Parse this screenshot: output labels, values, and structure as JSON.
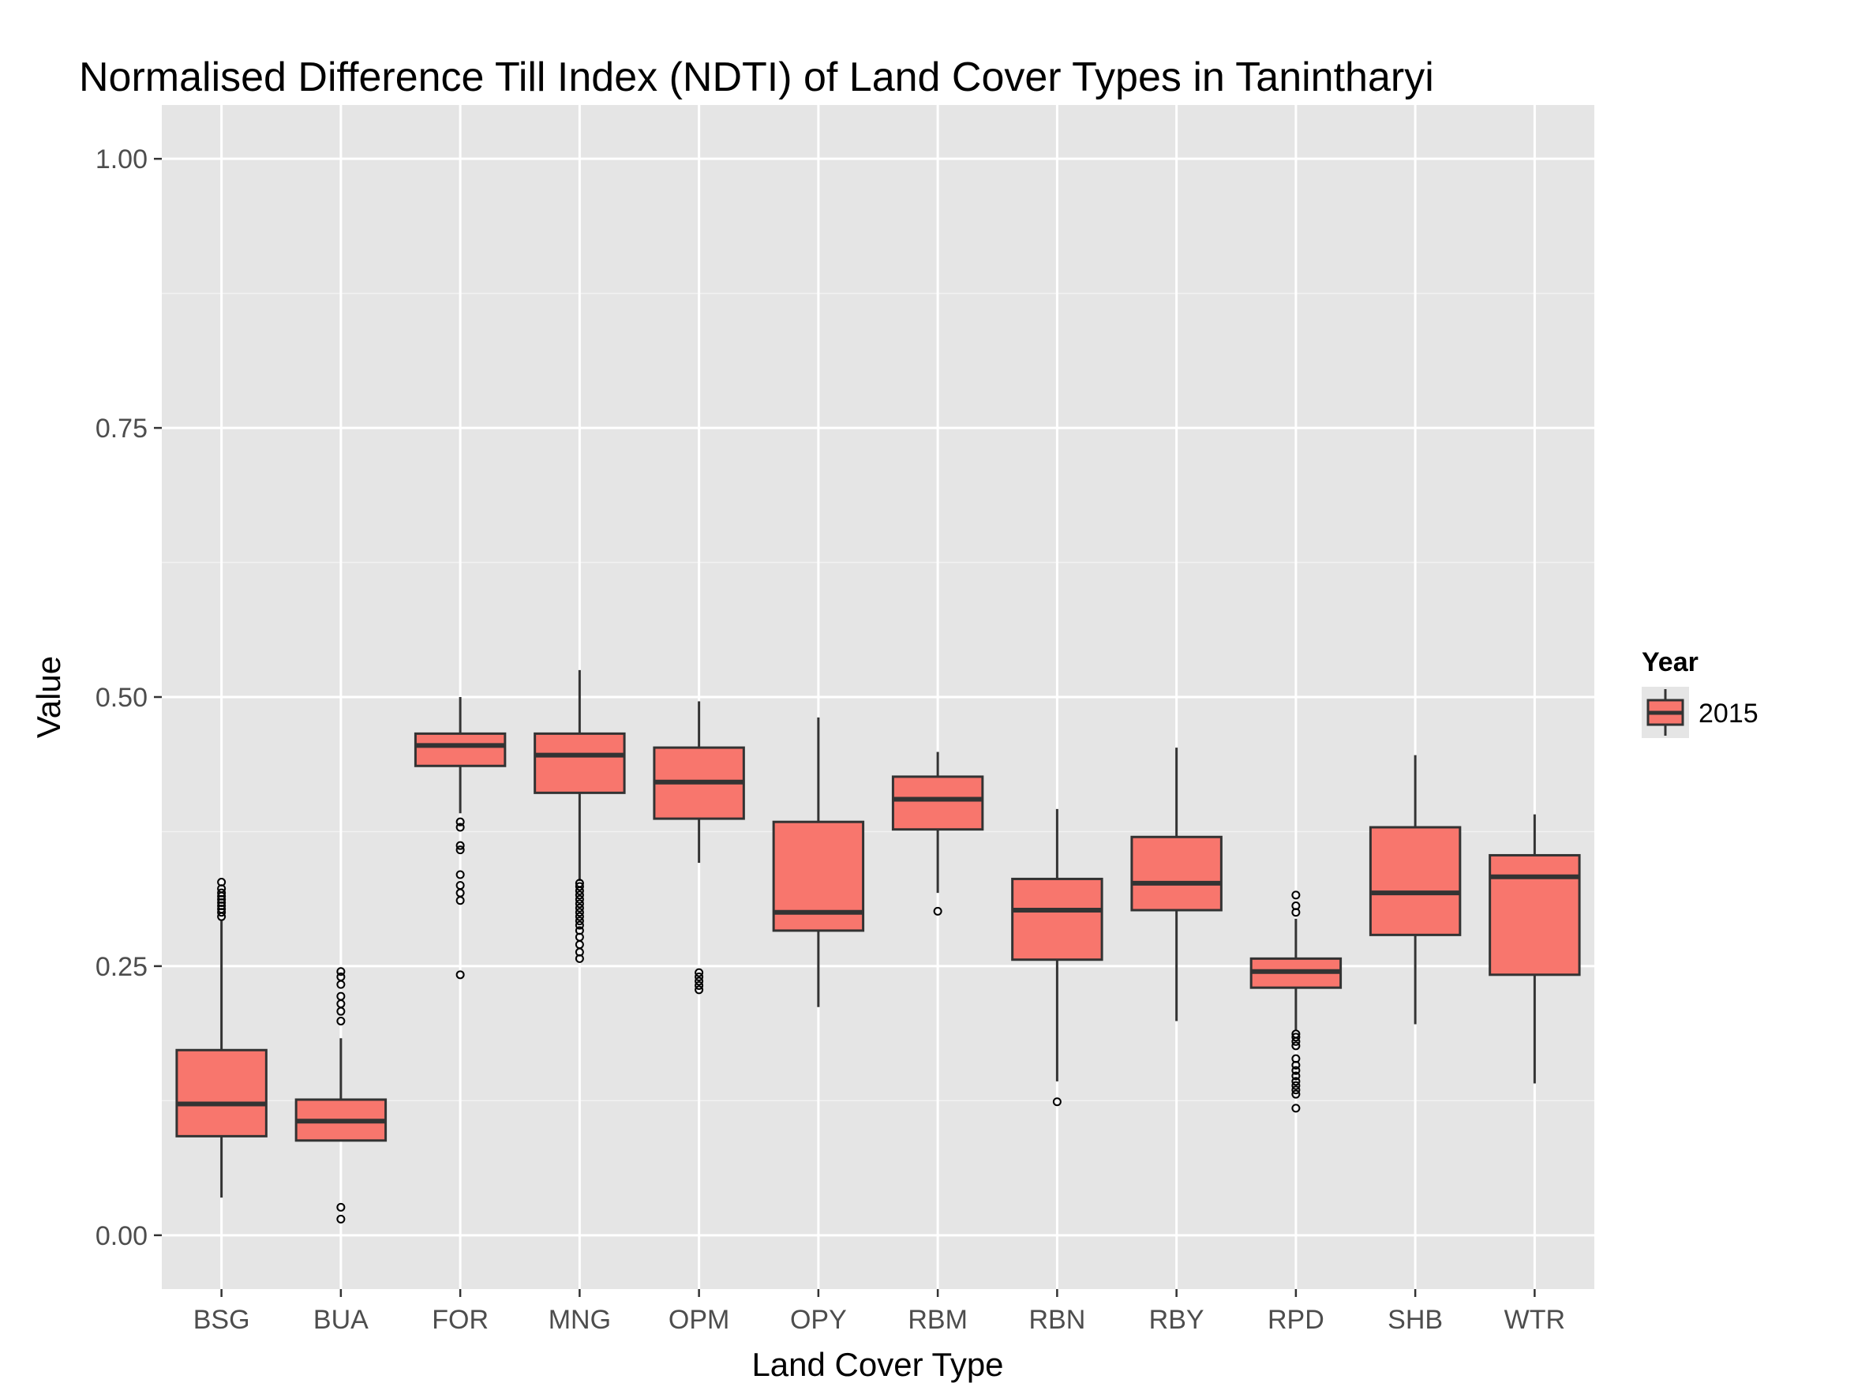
{
  "chart_data": {
    "type": "box",
    "title": "Normalised Difference Till Index (NDTI) of Land Cover Types in Tanintharyi",
    "xlabel": "Land Cover Type",
    "ylabel": "Value",
    "ylim": [
      -0.05,
      1.05
    ],
    "yticks": [
      0.0,
      0.25,
      0.5,
      0.75,
      1.0
    ],
    "ytick_labels": [
      "0.00",
      "0.25",
      "0.50",
      "0.75",
      "1.00"
    ],
    "grid": true,
    "legend": {
      "title": "Year",
      "placement": "right",
      "entries": [
        "2015"
      ]
    },
    "colors": {
      "fill": "#F8766D",
      "panel": "#E5E5E5",
      "grid": "#FFFFFF",
      "stroke": "#333333"
    },
    "categories": [
      "BSG",
      "BUA",
      "FOR",
      "MNG",
      "OPM",
      "OPY",
      "RBM",
      "RBN",
      "RBY",
      "RPD",
      "SHB",
      "WTR"
    ],
    "series": [
      {
        "name": "2015",
        "boxes": [
          {
            "category": "BSG",
            "whisker_low": 0.035,
            "q1": 0.092,
            "median": 0.122,
            "q3": 0.172,
            "whisker_high": 0.292,
            "outliers": [
              0.296,
              0.3,
              0.303,
              0.306,
              0.309,
              0.312,
              0.315,
              0.318,
              0.322,
              0.328
            ]
          },
          {
            "category": "BUA",
            "whisker_low": 0.088,
            "q1": 0.088,
            "median": 0.106,
            "q3": 0.126,
            "whisker_high": 0.183,
            "outliers": [
              0.015,
              0.026,
              0.199,
              0.208,
              0.215,
              0.222,
              0.233,
              0.24,
              0.245
            ]
          },
          {
            "category": "FOR",
            "whisker_low": 0.392,
            "q1": 0.436,
            "median": 0.455,
            "q3": 0.466,
            "whisker_high": 0.5,
            "outliers": [
              0.242,
              0.311,
              0.318,
              0.325,
              0.335,
              0.358,
              0.362,
              0.379,
              0.384
            ]
          },
          {
            "category": "MNG",
            "whisker_low": 0.329,
            "q1": 0.411,
            "median": 0.446,
            "q3": 0.466,
            "whisker_high": 0.525,
            "outliers": [
              0.257,
              0.263,
              0.27,
              0.277,
              0.283,
              0.288,
              0.292,
              0.296,
              0.3,
              0.304,
              0.308,
              0.312,
              0.316,
              0.32,
              0.324,
              0.327
            ]
          },
          {
            "category": "OPM",
            "whisker_low": 0.346,
            "q1": 0.387,
            "median": 0.421,
            "q3": 0.453,
            "whisker_high": 0.496,
            "outliers": [
              0.228,
              0.232,
              0.236,
              0.24,
              0.244
            ]
          },
          {
            "category": "OPY",
            "whisker_low": 0.212,
            "q1": 0.283,
            "median": 0.3,
            "q3": 0.384,
            "whisker_high": 0.481,
            "outliers": []
          },
          {
            "category": "RBM",
            "whisker_low": 0.318,
            "q1": 0.377,
            "median": 0.405,
            "q3": 0.426,
            "whisker_high": 0.449,
            "outliers": [
              0.301
            ]
          },
          {
            "category": "RBN",
            "whisker_low": 0.143,
            "q1": 0.256,
            "median": 0.302,
            "q3": 0.331,
            "whisker_high": 0.396,
            "outliers": [
              0.124
            ]
          },
          {
            "category": "RBY",
            "whisker_low": 0.199,
            "q1": 0.302,
            "median": 0.327,
            "q3": 0.37,
            "whisker_high": 0.453,
            "outliers": []
          },
          {
            "category": "RPD",
            "whisker_low": 0.19,
            "q1": 0.23,
            "median": 0.245,
            "q3": 0.257,
            "whisker_high": 0.294,
            "outliers": [
              0.118,
              0.131,
              0.135,
              0.139,
              0.143,
              0.148,
              0.153,
              0.158,
              0.164,
              0.176,
              0.18,
              0.184,
              0.187,
              0.3,
              0.306,
              0.316
            ]
          },
          {
            "category": "SHB",
            "whisker_low": 0.196,
            "q1": 0.279,
            "median": 0.318,
            "q3": 0.379,
            "whisker_high": 0.446,
            "outliers": []
          },
          {
            "category": "WTR",
            "whisker_low": 0.141,
            "q1": 0.242,
            "median": 0.333,
            "q3": 0.353,
            "whisker_high": 0.391,
            "outliers": []
          }
        ]
      }
    ]
  }
}
